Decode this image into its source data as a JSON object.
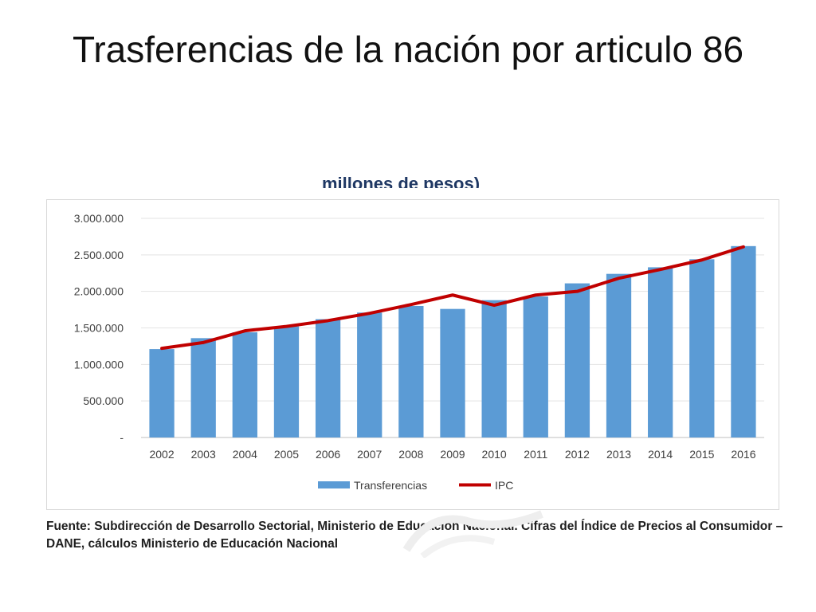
{
  "slide": {
    "title": "Trasferencias de la nación por articulo 86",
    "cropped_header": "millones de pesos)",
    "source": "Fuente: Subdirección de Desarrollo Sectorial, Ministerio de Educación Nacional. Cifras del Índice de Precios al Consumidor – DANE, cálculos Ministerio de Educación Nacional"
  },
  "chart_data": {
    "type": "bar",
    "title": "",
    "xlabel": "",
    "ylabel": "",
    "ylim": [
      0,
      3000000
    ],
    "y_ticks": [
      0,
      500000,
      1000000,
      1500000,
      2000000,
      2500000,
      3000000
    ],
    "y_tick_labels": [
      "-",
      "500.000",
      "1.000.000",
      "1.500.000",
      "2.000.000",
      "2.500.000",
      "3.000.000"
    ],
    "grid": true,
    "legend_position": "bottom",
    "categories": [
      "2002",
      "2003",
      "2004",
      "2005",
      "2006",
      "2007",
      "2008",
      "2009",
      "2010",
      "2011",
      "2012",
      "2013",
      "2014",
      "2015",
      "2016"
    ],
    "series": [
      {
        "name": "Transferencias",
        "type": "bar",
        "color": "#5b9bd5",
        "values": [
          1210000,
          1360000,
          1440000,
          1520000,
          1620000,
          1710000,
          1800000,
          1760000,
          1880000,
          1930000,
          2110000,
          2240000,
          2330000,
          2440000,
          2620000
        ]
      },
      {
        "name": "IPC",
        "type": "line",
        "color": "#c00000",
        "values": [
          1220000,
          1300000,
          1460000,
          1520000,
          1600000,
          1700000,
          1820000,
          1950000,
          1810000,
          1950000,
          2000000,
          2180000,
          2300000,
          2430000,
          2610000
        ]
      }
    ]
  }
}
